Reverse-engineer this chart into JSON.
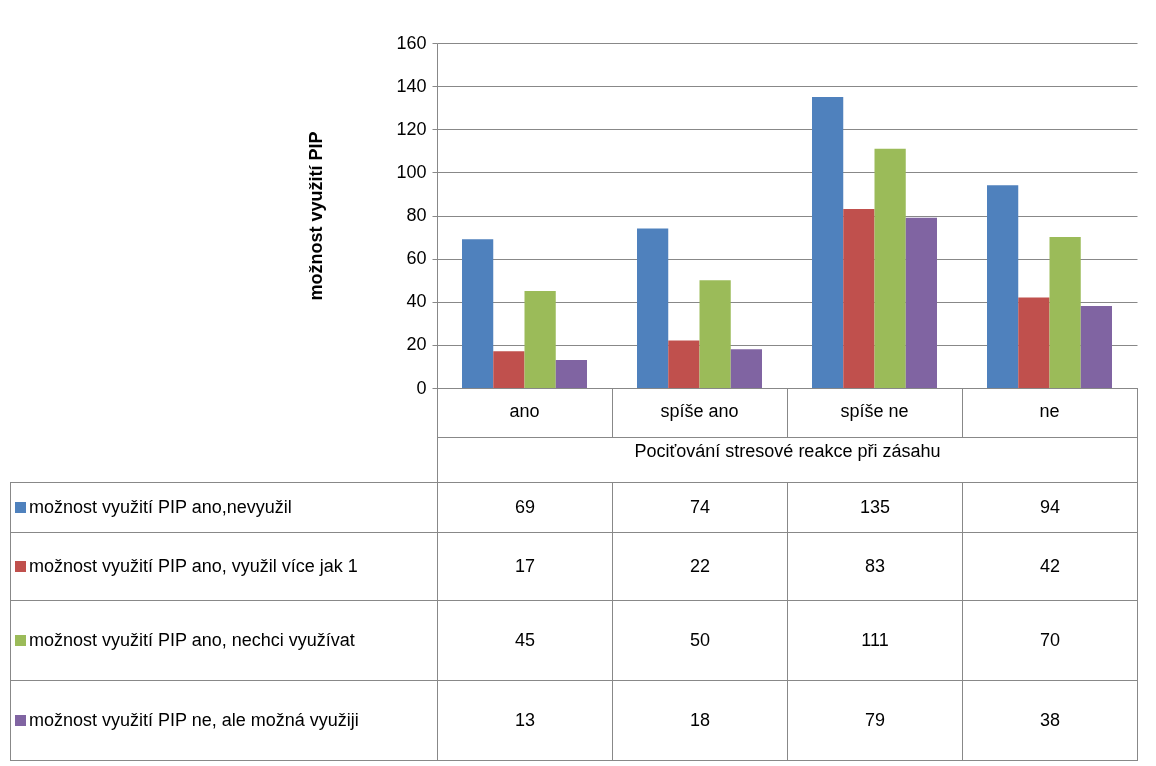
{
  "chart_data": {
    "type": "bar",
    "xlabel": "Pociťování stresové reakce při zásahu",
    "ylabel": "možnost využití PIP",
    "categories": [
      "ano",
      "spíše ano",
      "spíše ne",
      "ne"
    ],
    "series": [
      {
        "name": "možnost využití PIP ano,nevyužil",
        "color": "#4f81bd",
        "values": [
          69,
          74,
          135,
          94
        ]
      },
      {
        "name": "možnost využití PIP ano, využil více jak 1",
        "color": "#c0504d",
        "values": [
          17,
          22,
          83,
          42
        ]
      },
      {
        "name": "možnost využití PIP ano, nechci využívat",
        "color": "#9bbb59",
        "values": [
          45,
          50,
          111,
          70
        ]
      },
      {
        "name": "možnost využití PIP ne, ale možná využiji",
        "color": "#8064a2",
        "values": [
          13,
          18,
          79,
          38
        ]
      }
    ],
    "ylim": [
      0,
      160
    ],
    "yticks": [
      0,
      20,
      40,
      60,
      80,
      100,
      120,
      140,
      160
    ],
    "grid": "y",
    "legend": "bottom",
    "data_labels": true
  }
}
